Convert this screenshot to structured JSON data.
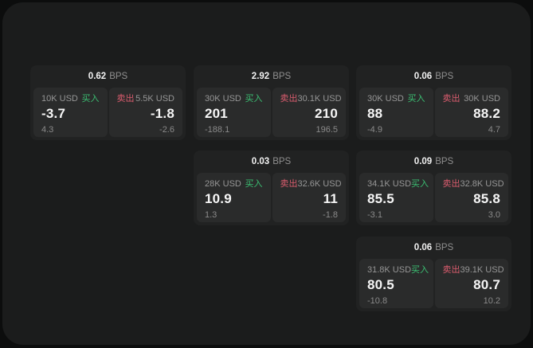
{
  "labels": {
    "bps": "BPS",
    "buy": "买入",
    "sell": "卖出"
  },
  "colors": {
    "buy": "#3bbf72",
    "sell": "#da5c6e"
  },
  "cards": [
    {
      "row": 1,
      "col": 1,
      "bps": "0.62",
      "buy": {
        "amount": "10K USD",
        "price": "-3.7",
        "change": "4.3"
      },
      "sell": {
        "amount": "5.5K USD",
        "price": "-1.8",
        "change": "-2.6"
      }
    },
    {
      "row": 1,
      "col": 2,
      "bps": "2.92",
      "buy": {
        "amount": "30K USD",
        "price": "201",
        "change": "-188.1"
      },
      "sell": {
        "amount": "30.1K USD",
        "price": "210",
        "change": "196.5"
      }
    },
    {
      "row": 1,
      "col": 3,
      "bps": "0.06",
      "buy": {
        "amount": "30K USD",
        "price": "88",
        "change": "-4.9"
      },
      "sell": {
        "amount": "30K USD",
        "price": "88.2",
        "change": "4.7"
      }
    },
    {
      "row": 2,
      "col": 2,
      "bps": "0.03",
      "buy": {
        "amount": "28K USD",
        "price": "10.9",
        "change": "1.3"
      },
      "sell": {
        "amount": "32.6K USD",
        "price": "11",
        "change": "-1.8"
      }
    },
    {
      "row": 2,
      "col": 3,
      "bps": "0.09",
      "buy": {
        "amount": "34.1K USD",
        "price": "85.5",
        "change": "-3.1"
      },
      "sell": {
        "amount": "32.8K USD",
        "price": "85.8",
        "change": "3.0"
      }
    },
    {
      "row": 3,
      "col": 3,
      "bps": "0.06",
      "buy": {
        "amount": "31.8K USD",
        "price": "80.5",
        "change": "-10.8"
      },
      "sell": {
        "amount": "39.1K USD",
        "price": "80.7",
        "change": "10.2"
      }
    }
  ]
}
